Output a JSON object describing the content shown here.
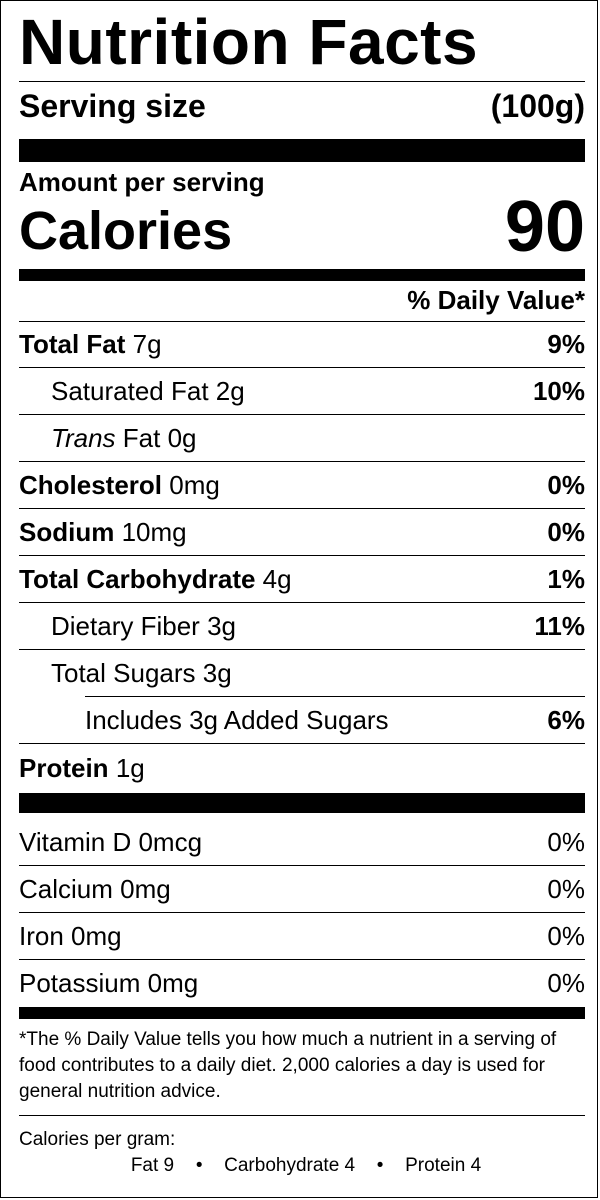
{
  "title": "Nutrition Facts",
  "serving": {
    "label": "Serving size",
    "value": "(100g)"
  },
  "amount_per_serving": "Amount per serving",
  "calories": {
    "label": "Calories",
    "value": "90"
  },
  "daily_value_header": "% Daily Value*",
  "nutrients": [
    {
      "name": "Total Fat",
      "amount": "7g",
      "pct": "9%"
    },
    {
      "name": "Saturated Fat",
      "amount": "2g",
      "pct": "10%"
    },
    {
      "name_italic": "Trans",
      "name": "Fat",
      "amount": "0g"
    },
    {
      "name": "Cholesterol",
      "amount": "0mg",
      "pct": "0%"
    },
    {
      "name": "Sodium",
      "amount": "10mg",
      "pct": "0%"
    },
    {
      "name": "Total Carbohydrate",
      "amount": "4g",
      "pct": "1%"
    },
    {
      "name": "Dietary Fiber",
      "amount": "3g",
      "pct": "11%"
    },
    {
      "name": "Total Sugars",
      "amount": "3g"
    },
    {
      "name": "Includes 3g Added Sugars",
      "pct": "6%"
    },
    {
      "name": "Protein",
      "amount": "1g"
    }
  ],
  "vitamins": [
    {
      "name": "Vitamin D",
      "amount": "0mcg",
      "pct": "0%"
    },
    {
      "name": "Calcium",
      "amount": "0mg",
      "pct": "0%"
    },
    {
      "name": "Iron",
      "amount": "0mg",
      "pct": "0%"
    },
    {
      "name": "Potassium",
      "amount": "0mg",
      "pct": "0%"
    }
  ],
  "footnote": "*The % Daily Value tells you how much a nutrient in a serving of food contributes to a daily diet. 2,000 calories a day is used for general nutrition advice.",
  "calories_per_gram": {
    "label": "Calories per gram:",
    "fat": "Fat 9",
    "carb": "Carbohydrate 4",
    "protein": "Protein 4",
    "separator": "•"
  }
}
